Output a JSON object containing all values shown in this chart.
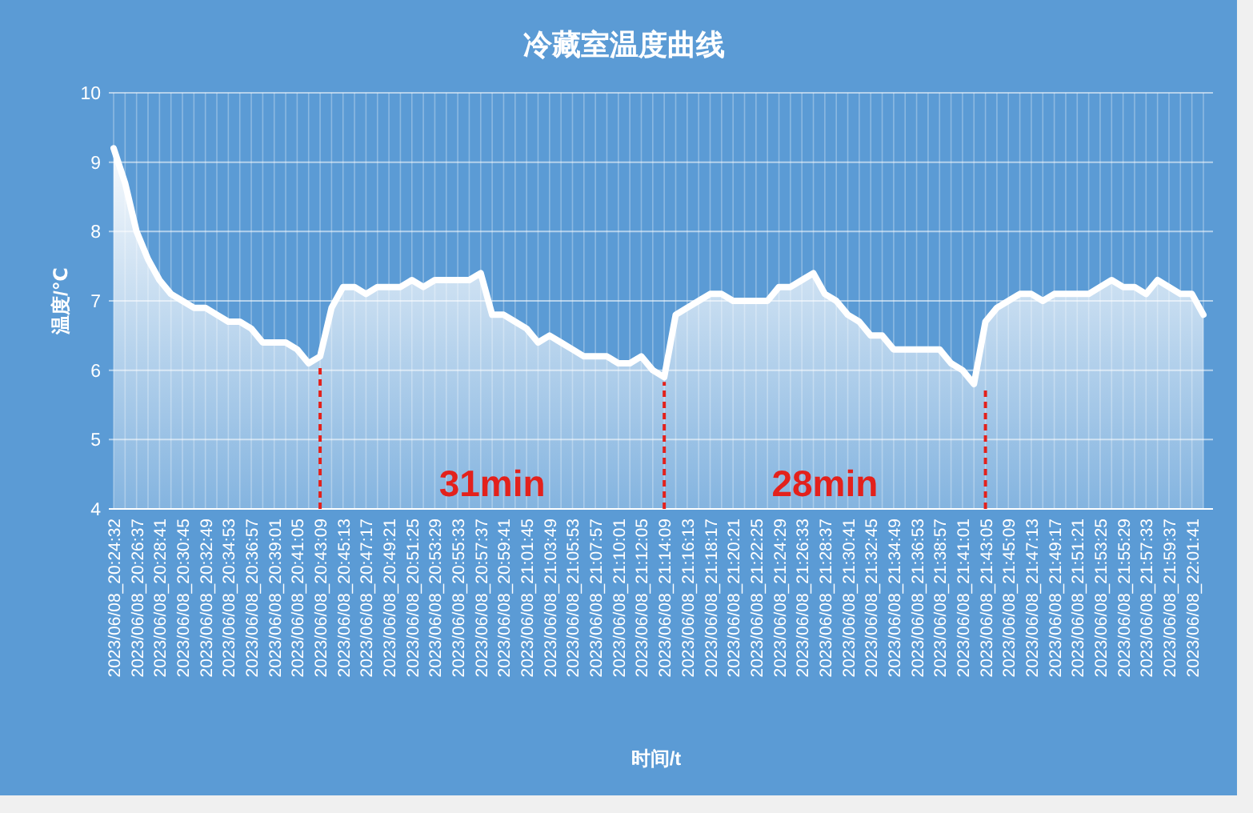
{
  "chart_data": {
    "type": "area",
    "title": "冷藏室温度曲线",
    "xlabel": "时间/t",
    "ylabel": "温度/℃",
    "categories": [
      "2023/06/08_20:24:32",
      null,
      "2023/06/08_20:26:37",
      null,
      "2023/06/08_20:28:41",
      null,
      "2023/06/08_20:30:45",
      null,
      "2023/06/08_20:32:49",
      null,
      "2023/06/08_20:34:53",
      null,
      "2023/06/08_20:36:57",
      null,
      "2023/06/08_20:39:01",
      null,
      "2023/06/08_20:41:05",
      null,
      "2023/06/08_20:43:09",
      null,
      "2023/06/08_20:45:13",
      null,
      "2023/06/08_20:47:17",
      null,
      "2023/06/08_20:49:21",
      null,
      "2023/06/08_20:51:25",
      null,
      "2023/06/08_20:53:29",
      null,
      "2023/06/08_20:55:33",
      null,
      "2023/06/08_20:57:37",
      null,
      "2023/06/08_20:59:41",
      null,
      "2023/06/08_21:01:45",
      null,
      "2023/06/08_21:03:49",
      null,
      "2023/06/08_21:05:53",
      null,
      "2023/06/08_21:07:57",
      null,
      "2023/06/08_21:10:01",
      null,
      "2023/06/08_21:12:05",
      null,
      "2023/06/08_21:14:09",
      null,
      "2023/06/08_21:16:13",
      null,
      "2023/06/08_21:18:17",
      null,
      "2023/06/08_21:20:21",
      null,
      "2023/06/08_21:22:25",
      null,
      "2023/06/08_21:24:29",
      null,
      "2023/06/08_21:26:33",
      null,
      "2023/06/08_21:28:37",
      null,
      "2023/06/08_21:30:41",
      null,
      "2023/06/08_21:32:45",
      null,
      "2023/06/08_21:34:49",
      null,
      "2023/06/08_21:36:53",
      null,
      "2023/06/08_21:38:57",
      null,
      "2023/06/08_21:41:01",
      null,
      "2023/06/08_21:43:05",
      null,
      "2023/06/08_21:45:09",
      null,
      "2023/06/08_21:47:13",
      null,
      "2023/06/08_21:49:17",
      null,
      "2023/06/08_21:51:21",
      null,
      "2023/06/08_21:53:25",
      null,
      "2023/06/08_21:55:29",
      null,
      "2023/06/08_21:57:33",
      null,
      "2023/06/08_21:59:37",
      null,
      "2023/06/08_22:01:41",
      null
    ],
    "series": [
      {
        "color": "#ffffff",
        "values": [
          9.2,
          8.7,
          8.0,
          7.6,
          7.3,
          7.1,
          7.0,
          6.9,
          6.9,
          6.8,
          6.7,
          6.7,
          6.6,
          6.4,
          6.4,
          6.4,
          6.3,
          6.1,
          6.2,
          6.9,
          7.2,
          7.2,
          7.1,
          7.2,
          7.2,
          7.2,
          7.3,
          7.2,
          7.3,
          7.3,
          7.3,
          7.3,
          7.4,
          6.8,
          6.8,
          6.7,
          6.6,
          6.4,
          6.5,
          6.4,
          6.3,
          6.2,
          6.2,
          6.2,
          6.1,
          6.1,
          6.2,
          6.0,
          5.9,
          6.8,
          6.9,
          7.0,
          7.1,
          7.1,
          7.0,
          7.0,
          7.0,
          7.0,
          7.2,
          7.2,
          7.3,
          7.4,
          7.1,
          7.0,
          6.8,
          6.7,
          6.5,
          6.5,
          6.3,
          6.3,
          6.3,
          6.3,
          6.3,
          6.1,
          6.0,
          5.8,
          6.7,
          6.9,
          7.0,
          7.1,
          7.1,
          7.0,
          7.1,
          7.1,
          7.1,
          7.1,
          7.2,
          7.3,
          7.2,
          7.2,
          7.1,
          7.3,
          7.2,
          7.1,
          7.1,
          6.8
        ]
      }
    ],
    "ylim": [
      4,
      10
    ],
    "yticks": [
      4,
      5,
      6,
      7,
      8,
      9,
      10
    ],
    "grid": true,
    "ref_lines": [
      {
        "axis": "x",
        "value": "2023/06/08_20:43:09",
        "color": "#e3211c",
        "line_style": "dashed"
      },
      {
        "axis": "x",
        "value": "2023/06/08_21:14:09",
        "color": "#e3211c",
        "line_style": "dashed"
      },
      {
        "axis": "x",
        "value": "2023/06/08_21:43:05",
        "color": "#e3211c",
        "line_style": "dashed"
      }
    ],
    "annotations": [
      "31min",
      "28min"
    ]
  }
}
